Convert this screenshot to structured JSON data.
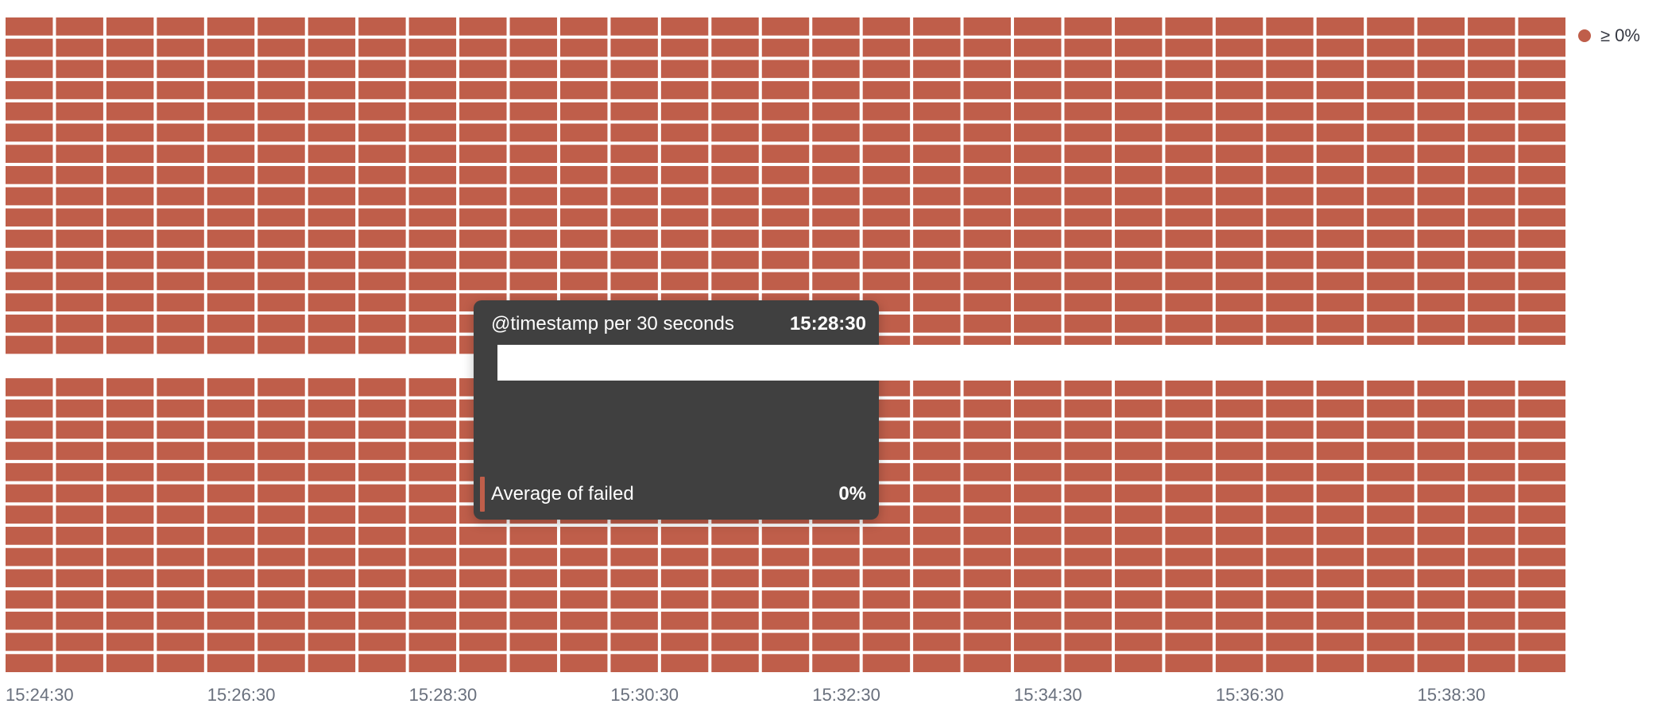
{
  "chart_data": {
    "type": "heatmap",
    "x_ticks": [
      "15:24:30",
      "15:26:30",
      "15:28:30",
      "15:30:30",
      "15:32:30",
      "15:34:30",
      "15:36:30",
      "15:38:30"
    ],
    "columns": 31,
    "rows": 31,
    "cell_value": "0%",
    "legend": [
      {
        "label": "≥ 0%",
        "color": "#bf5e4a"
      }
    ],
    "highlighted_row": 16
  },
  "tooltip": {
    "title": "@timestamp per 30 seconds",
    "time": "15:28:30",
    "metric_label": "Average of failed",
    "metric_value": "0%",
    "swatch_color": "#bf5e4a"
  }
}
